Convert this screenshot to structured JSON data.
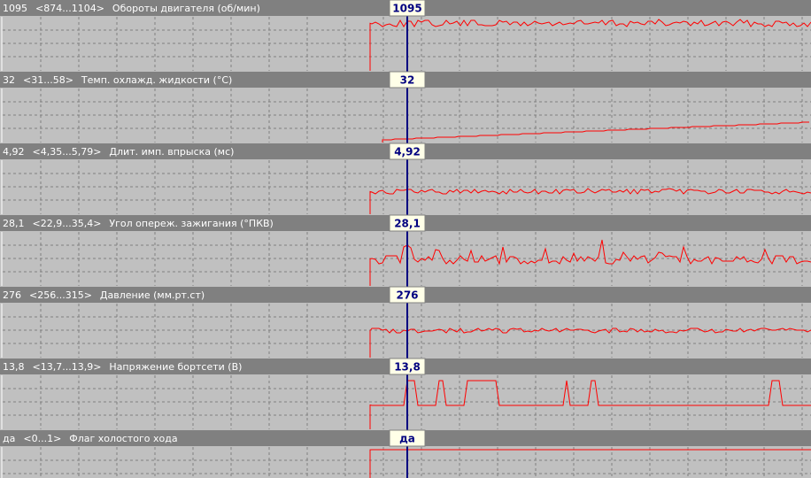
{
  "panels": [
    {
      "value": "1095",
      "range": "<874...1104>",
      "label": "Обороты двигателя (об/мин)",
      "cursor": "1095"
    },
    {
      "value": "32",
      "range": "<31...58>",
      "label": "Темп. охлажд. жидкости (°C)",
      "cursor": "32"
    },
    {
      "value": "4,92",
      "range": "<4,35...5,79>",
      "label": "Длит. имп. впрыска (мс)",
      "cursor": "4,92"
    },
    {
      "value": "28,1",
      "range": "<22,9...35,4>",
      "label": "Угол опереж. зажигания (°ПКВ)",
      "cursor": "28,1"
    },
    {
      "value": "276",
      "range": "<256...315>",
      "label": "Давление (мм.рт.ст)",
      "cursor": "276"
    },
    {
      "value": "13,8",
      "range": "<13,7...13,9>",
      "label": "Напряжение бортсети (В)",
      "cursor": "13,8"
    },
    {
      "value": "да",
      "range": "<0...1>",
      "label": "Флаг холостого хода",
      "cursor": "да"
    }
  ]
}
